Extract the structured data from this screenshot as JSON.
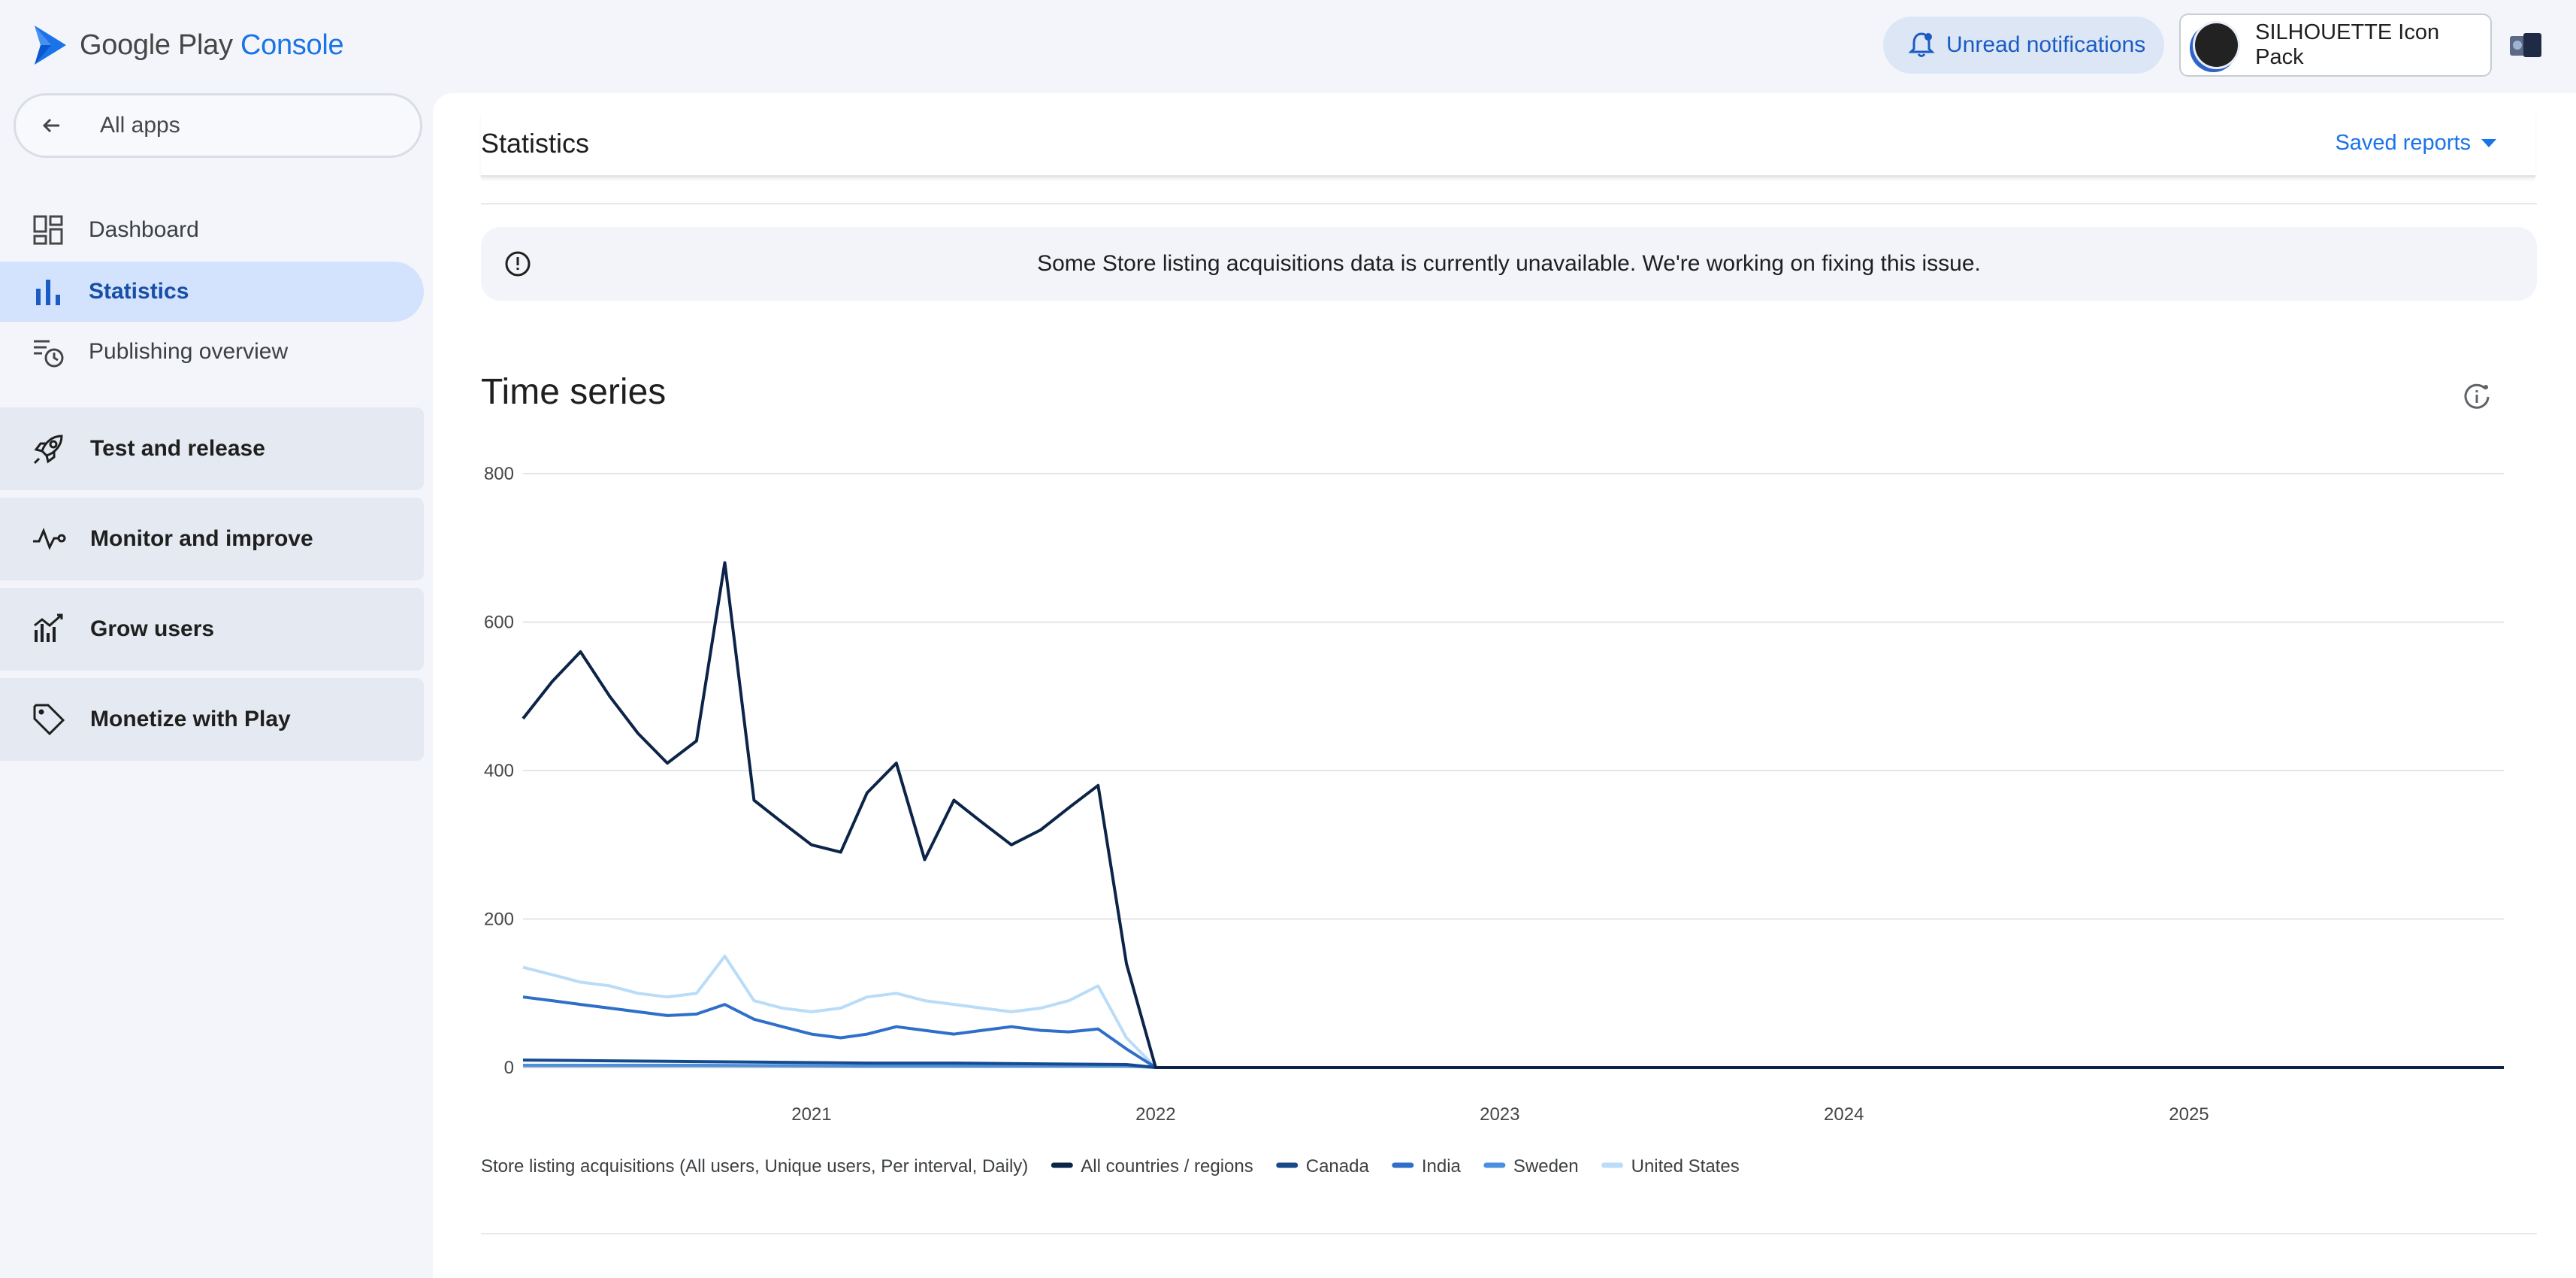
{
  "header": {
    "brand_main": "Google Play",
    "brand_accent": "Console",
    "notifications_label": "Unread notifications",
    "app_name": "SILHOUETTE Icon Pack"
  },
  "sidebar": {
    "back_label": "All apps",
    "items": [
      {
        "label": "Dashboard",
        "icon": "dashboard-icon"
      },
      {
        "label": "Statistics",
        "icon": "bar-chart-icon",
        "active": true
      },
      {
        "label": "Publishing overview",
        "icon": "schedule-list-icon"
      }
    ],
    "groups": [
      {
        "label": "Test and release",
        "icon": "rocket-icon"
      },
      {
        "label": "Monitor and improve",
        "icon": "vitals-icon"
      },
      {
        "label": "Grow users",
        "icon": "grow-chart-icon"
      },
      {
        "label": "Monetize with Play",
        "icon": "tag-icon"
      }
    ]
  },
  "main": {
    "title": "Statistics",
    "saved_reports": "Saved reports",
    "banner": "Some Store listing acquisitions data is currently unavailable. We're working on fixing this issue.",
    "section_title": "Time series"
  },
  "colors": {
    "accent": "#1a73e8",
    "active_nav_bg": "#d3e3fd"
  },
  "chart_data": {
    "type": "line",
    "title": "",
    "metric_label": "Store listing acquisitions (All users, Unique users, Per interval, Daily)",
    "x_range": [
      "2020-03-01",
      "2025-12-01"
    ],
    "x_ticks": [
      "2021",
      "2022",
      "2023",
      "2024",
      "2025"
    ],
    "ylim": [
      0,
      800
    ],
    "y_ticks": [
      0,
      200,
      400,
      600,
      800
    ],
    "grid": true,
    "legend_position": "bottom",
    "data_end_note": "values drop to 0 after 2021-12",
    "series": [
      {
        "name": "All countries / regions",
        "color": "#0b2447",
        "x": [
          "2020-03",
          "2020-04",
          "2020-05",
          "2020-06",
          "2020-07",
          "2020-08",
          "2020-09",
          "2020-10",
          "2020-11",
          "2020-12",
          "2021-01",
          "2021-02",
          "2021-03",
          "2021-04",
          "2021-05",
          "2021-06",
          "2021-07",
          "2021-08",
          "2021-09",
          "2021-10",
          "2021-11",
          "2021-12",
          "2022-01",
          "2023-01",
          "2024-01",
          "2025-01",
          "2025-12"
        ],
        "values": [
          470,
          520,
          560,
          500,
          450,
          410,
          440,
          680,
          360,
          330,
          300,
          290,
          370,
          410,
          280,
          360,
          330,
          300,
          320,
          350,
          380,
          140,
          0,
          0,
          0,
          0,
          0
        ]
      },
      {
        "name": "Canada",
        "color": "#174a8c",
        "x": [
          "2020-03",
          "2020-06",
          "2020-09",
          "2020-12",
          "2021-03",
          "2021-06",
          "2021-09",
          "2021-12",
          "2022-01",
          "2025-12"
        ],
        "values": [
          10,
          9,
          8,
          7,
          6,
          6,
          5,
          4,
          0,
          0
        ]
      },
      {
        "name": "India",
        "color": "#2f6fc9",
        "x": [
          "2020-03",
          "2020-04",
          "2020-05",
          "2020-06",
          "2020-07",
          "2020-08",
          "2020-09",
          "2020-10",
          "2020-11",
          "2020-12",
          "2021-01",
          "2021-02",
          "2021-03",
          "2021-04",
          "2021-05",
          "2021-06",
          "2021-07",
          "2021-08",
          "2021-09",
          "2021-10",
          "2021-11",
          "2021-12",
          "2022-01",
          "2025-12"
        ],
        "values": [
          95,
          90,
          85,
          80,
          75,
          70,
          72,
          85,
          65,
          55,
          45,
          40,
          45,
          55,
          50,
          45,
          50,
          55,
          50,
          48,
          52,
          25,
          0,
          0
        ]
      },
      {
        "name": "Sweden",
        "color": "#4b8fe0",
        "x": [
          "2020-03",
          "2020-09",
          "2021-03",
          "2021-09",
          "2021-12",
          "2022-01",
          "2025-12"
        ],
        "values": [
          3,
          3,
          2,
          2,
          2,
          0,
          0
        ]
      },
      {
        "name": "United States",
        "color": "#b9dcf8",
        "x": [
          "2020-03",
          "2020-04",
          "2020-05",
          "2020-06",
          "2020-07",
          "2020-08",
          "2020-09",
          "2020-10",
          "2020-11",
          "2020-12",
          "2021-01",
          "2021-02",
          "2021-03",
          "2021-04",
          "2021-05",
          "2021-06",
          "2021-07",
          "2021-08",
          "2021-09",
          "2021-10",
          "2021-11",
          "2021-12",
          "2022-01",
          "2025-12"
        ],
        "values": [
          135,
          125,
          115,
          110,
          100,
          95,
          100,
          150,
          90,
          80,
          75,
          80,
          95,
          100,
          90,
          85,
          80,
          75,
          80,
          90,
          110,
          40,
          0,
          0
        ]
      }
    ]
  }
}
